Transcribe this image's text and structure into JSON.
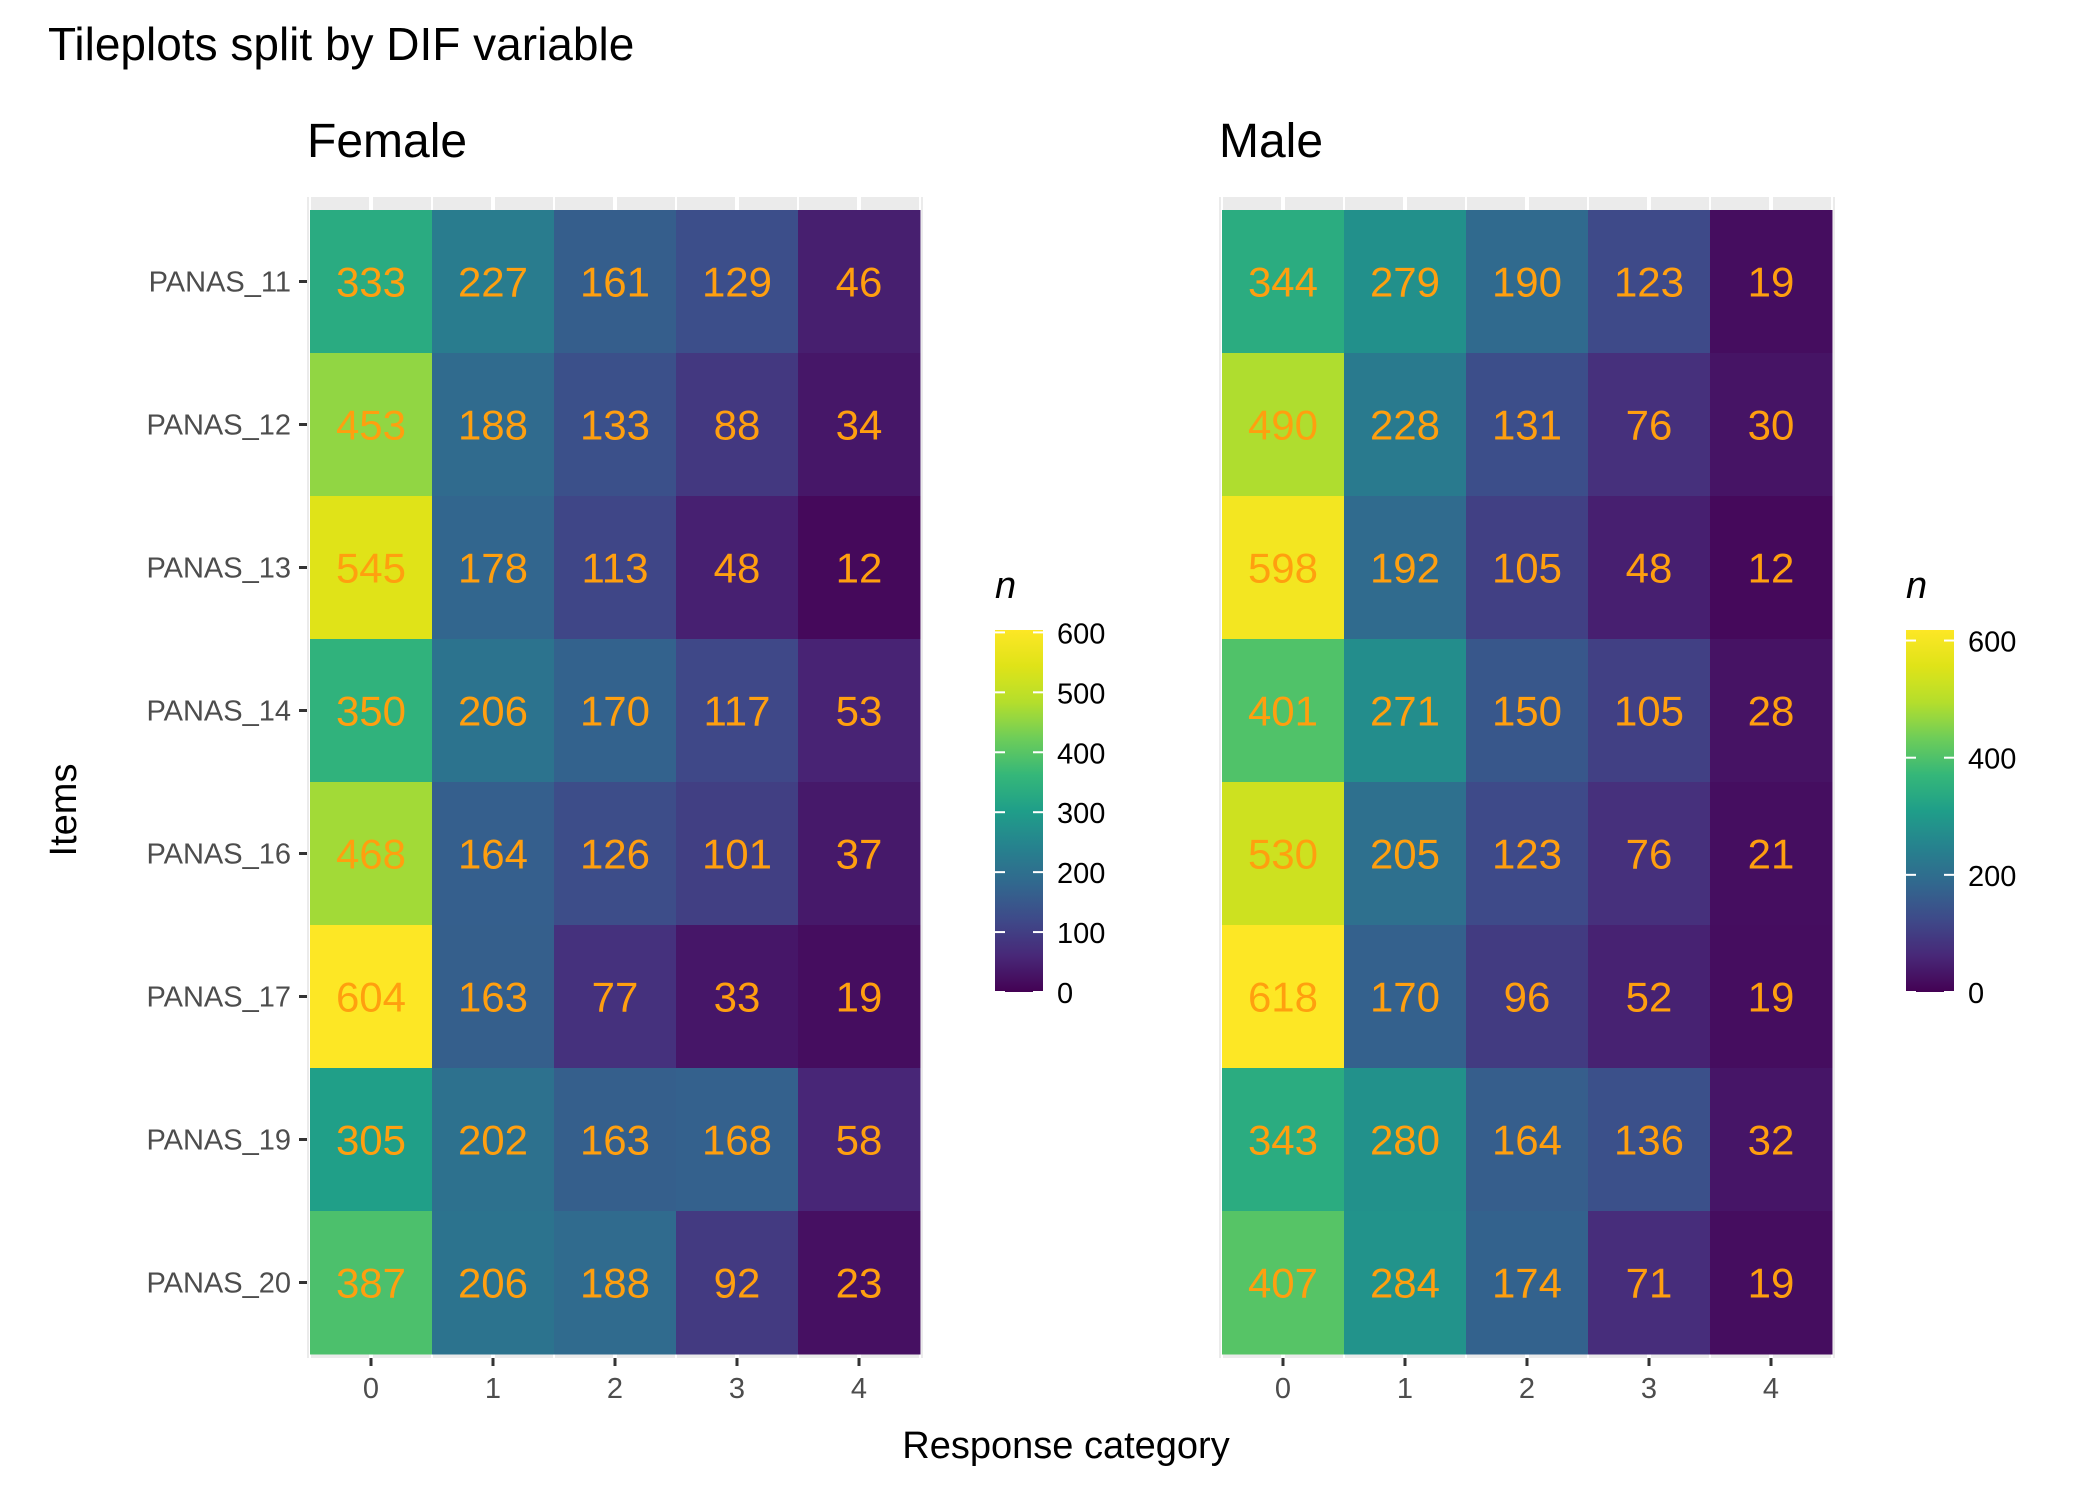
{
  "chart_data": {
    "type": "heatmap",
    "title": "Tileplots split by DIF variable",
    "xlabel": "Response category",
    "ylabel": "Items",
    "categories": [
      "0",
      "1",
      "2",
      "3",
      "4"
    ],
    "items": [
      "PANAS_11",
      "PANAS_12",
      "PANAS_13",
      "PANAS_14",
      "PANAS_16",
      "PANAS_17",
      "PANAS_19",
      "PANAS_20"
    ],
    "label_color": "#FF9F0F",
    "panel_background": "#EBEBEB",
    "colormap": "viridis",
    "panels": [
      {
        "name": "Female",
        "values": [
          [
            333,
            227,
            161,
            129,
            46
          ],
          [
            453,
            188,
            133,
            88,
            34
          ],
          [
            545,
            178,
            113,
            48,
            12
          ],
          [
            350,
            206,
            170,
            117,
            53
          ],
          [
            468,
            164,
            126,
            101,
            37
          ],
          [
            604,
            163,
            77,
            33,
            19
          ],
          [
            305,
            202,
            163,
            168,
            58
          ],
          [
            387,
            206,
            188,
            92,
            23
          ]
        ],
        "legend": {
          "title": "n",
          "min": 0,
          "max": 604,
          "ticks": [
            600,
            500,
            400,
            300,
            200,
            100,
            0
          ]
        }
      },
      {
        "name": "Male",
        "values": [
          [
            344,
            279,
            190,
            123,
            19
          ],
          [
            490,
            228,
            131,
            76,
            30
          ],
          [
            598,
            192,
            105,
            48,
            12
          ],
          [
            401,
            271,
            150,
            105,
            28
          ],
          [
            530,
            205,
            123,
            76,
            21
          ],
          [
            618,
            170,
            96,
            52,
            19
          ],
          [
            343,
            280,
            164,
            136,
            32
          ],
          [
            407,
            284,
            174,
            71,
            19
          ]
        ],
        "legend": {
          "title": "n",
          "min": 0,
          "max": 618,
          "ticks": [
            600,
            400,
            200,
            0
          ]
        }
      }
    ]
  }
}
